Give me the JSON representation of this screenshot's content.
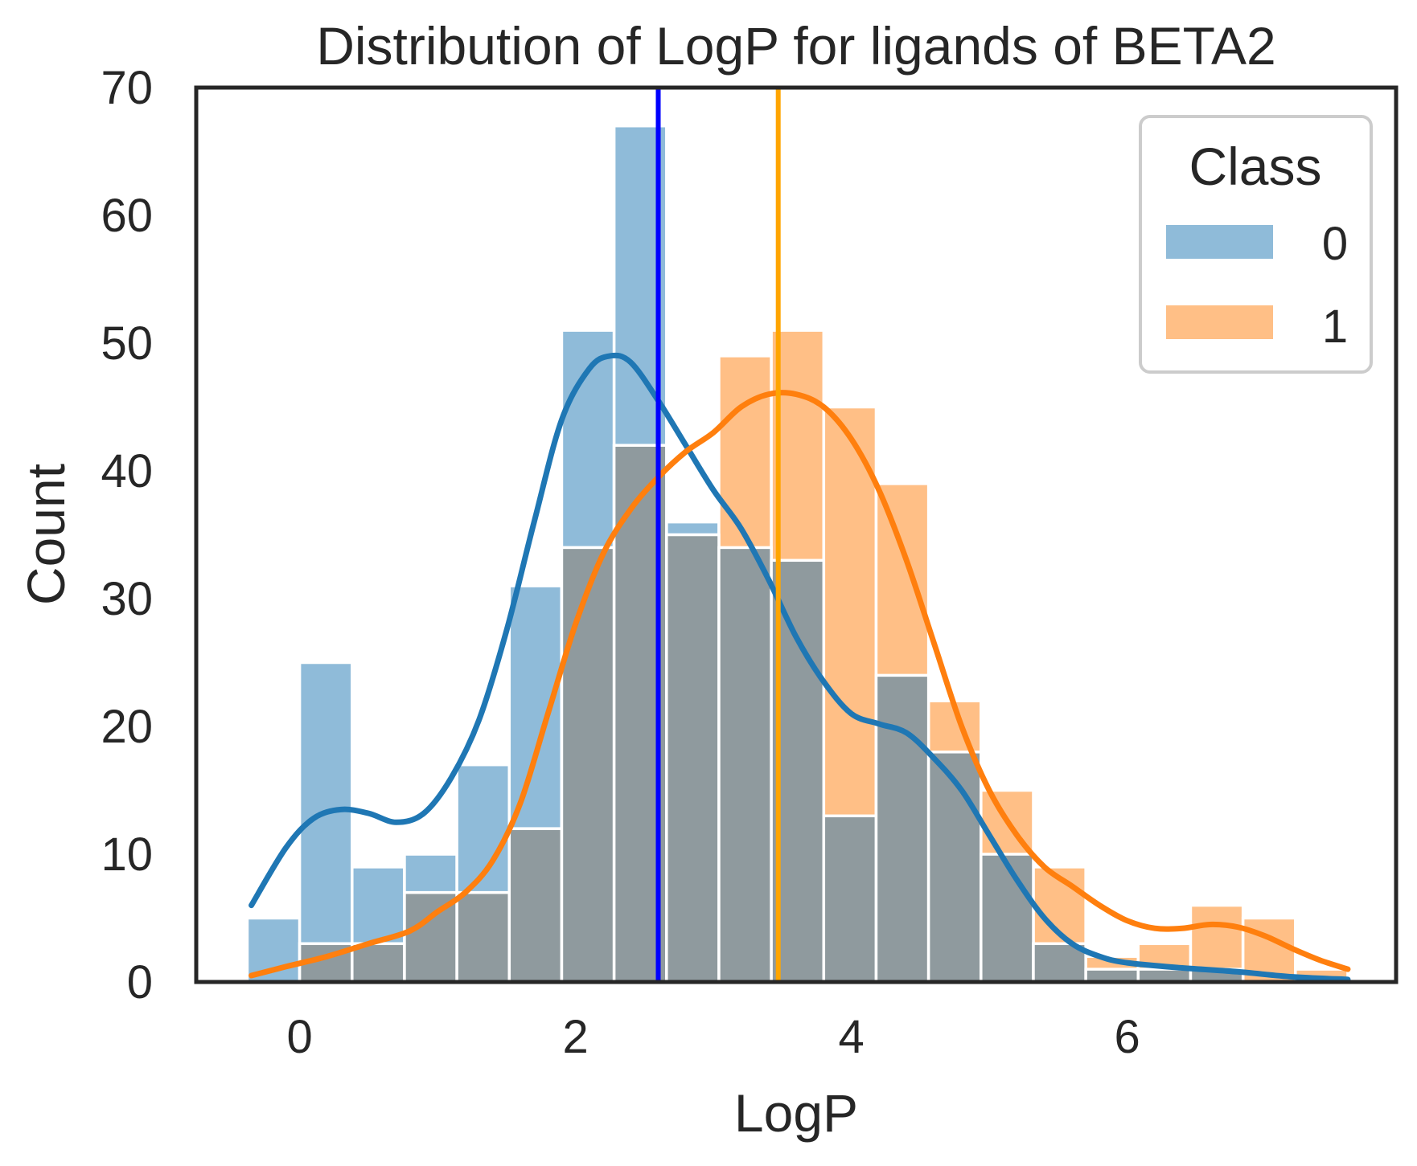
{
  "chart_data": {
    "type": "bar",
    "title": "Distribution of LogP for ligands of BETA2",
    "xlabel": "LogP",
    "ylabel": "Count",
    "xlim": [
      -0.75,
      7.95
    ],
    "ylim": [
      0,
      70
    ],
    "xticks": [
      0,
      2,
      4,
      6
    ],
    "yticks": [
      0,
      10,
      20,
      30,
      40,
      50,
      60,
      70
    ],
    "grid": false,
    "legend": {
      "title": "Class",
      "position": "top-right",
      "entries": [
        {
          "label": "0",
          "color": "#1f77b4"
        },
        {
          "label": "1",
          "color": "#ff7f0e"
        }
      ]
    },
    "bin_edges": [
      -0.38,
      0.0,
      0.38,
      0.76,
      1.14,
      1.52,
      1.9,
      2.28,
      2.66,
      3.04,
      3.42,
      3.8,
      4.18,
      4.56,
      4.94,
      5.32,
      5.7,
      6.08,
      6.46,
      6.84,
      7.22,
      7.6
    ],
    "series": [
      {
        "name": "0",
        "color": "#1f77b4",
        "values": [
          5,
          25,
          9,
          10,
          17,
          31,
          51,
          67,
          36,
          34,
          33,
          13,
          24,
          18,
          10,
          3,
          1,
          1,
          1,
          0,
          0
        ]
      },
      {
        "name": "1",
        "color": "#ff7f0e",
        "values": [
          0,
          3,
          3,
          7,
          7,
          12,
          34,
          42,
          35,
          49,
          51,
          45,
          39,
          22,
          15,
          9,
          2,
          3,
          6,
          5,
          1
        ]
      }
    ],
    "kde": [
      {
        "series": "0",
        "color": "#1f77b4",
        "points": [
          [
            -0.35,
            6
          ],
          [
            -0.1,
            10.5
          ],
          [
            0.1,
            12.8
          ],
          [
            0.3,
            13.5
          ],
          [
            0.5,
            13.2
          ],
          [
            0.7,
            12.5
          ],
          [
            0.9,
            13.2
          ],
          [
            1.1,
            16
          ],
          [
            1.3,
            20.5
          ],
          [
            1.5,
            27.5
          ],
          [
            1.7,
            36
          ],
          [
            1.9,
            44
          ],
          [
            2.1,
            48
          ],
          [
            2.25,
            49
          ],
          [
            2.4,
            48.5
          ],
          [
            2.6,
            45.5
          ],
          [
            2.8,
            42
          ],
          [
            3.0,
            38.5
          ],
          [
            3.2,
            35.5
          ],
          [
            3.4,
            31.5
          ],
          [
            3.6,
            27
          ],
          [
            3.8,
            23.5
          ],
          [
            4.0,
            21
          ],
          [
            4.2,
            20.2
          ],
          [
            4.4,
            19.5
          ],
          [
            4.6,
            17.5
          ],
          [
            4.8,
            15
          ],
          [
            5.0,
            11.5
          ],
          [
            5.2,
            8
          ],
          [
            5.4,
            5
          ],
          [
            5.6,
            3
          ],
          [
            5.8,
            2
          ],
          [
            6.0,
            1.5
          ],
          [
            6.4,
            1.1
          ],
          [
            6.8,
            0.8
          ],
          [
            7.2,
            0.4
          ],
          [
            7.6,
            0.2
          ]
        ]
      },
      {
        "series": "1",
        "color": "#ff7f0e",
        "points": [
          [
            -0.35,
            0.5
          ],
          [
            -0.1,
            1.2
          ],
          [
            0.2,
            2
          ],
          [
            0.5,
            3
          ],
          [
            0.8,
            4
          ],
          [
            1.0,
            5.5
          ],
          [
            1.2,
            7
          ],
          [
            1.4,
            9.5
          ],
          [
            1.6,
            14
          ],
          [
            1.8,
            21
          ],
          [
            2.0,
            28
          ],
          [
            2.2,
            33.5
          ],
          [
            2.4,
            37
          ],
          [
            2.6,
            39.5
          ],
          [
            2.8,
            41.5
          ],
          [
            3.0,
            43
          ],
          [
            3.2,
            45
          ],
          [
            3.4,
            46
          ],
          [
            3.6,
            46
          ],
          [
            3.8,
            45
          ],
          [
            4.0,
            42.5
          ],
          [
            4.2,
            38.5
          ],
          [
            4.4,
            33
          ],
          [
            4.6,
            26.5
          ],
          [
            4.8,
            20
          ],
          [
            5.0,
            15
          ],
          [
            5.2,
            11.5
          ],
          [
            5.4,
            9
          ],
          [
            5.6,
            7.5
          ],
          [
            5.8,
            6
          ],
          [
            6.0,
            4.8
          ],
          [
            6.2,
            4.2
          ],
          [
            6.4,
            4.2
          ],
          [
            6.6,
            4.5
          ],
          [
            6.8,
            4.3
          ],
          [
            7.0,
            3.6
          ],
          [
            7.2,
            2.6
          ],
          [
            7.4,
            1.7
          ],
          [
            7.6,
            1
          ]
        ]
      }
    ],
    "reference_lines": [
      {
        "series": "0",
        "x": 2.6,
        "color": "#0000ff"
      },
      {
        "series": "1",
        "x": 3.47,
        "color": "#ffa500"
      }
    ]
  }
}
